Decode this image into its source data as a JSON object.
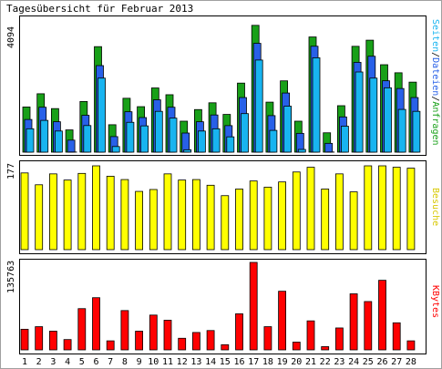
{
  "title": "Tagesübersicht für Februar 2013",
  "colors": {
    "anfragen": "#18a018",
    "dateien": "#2860e8",
    "seiten": "#18b4f0",
    "besuche": "#ffff00",
    "kbytes": "#ff0000",
    "weekend_day": "#009000",
    "weekday": "#000000"
  },
  "chart_data": [
    {
      "type": "bar",
      "name": "hits-files-pages",
      "ymax_label": "4094",
      "ylim": [
        0,
        4094
      ],
      "legend_right": [
        "Seiten",
        "Dateien",
        "Anfragen"
      ],
      "categories": [
        "1",
        "2",
        "3",
        "4",
        "5",
        "6",
        "7",
        "8",
        "9",
        "10",
        "11",
        "12",
        "13",
        "14",
        "15",
        "16",
        "17",
        "18",
        "19",
        "20",
        "21",
        "22",
        "23",
        "24",
        "25",
        "26",
        "27",
        "28"
      ],
      "series": [
        {
          "name": "Anfragen",
          "values": [
            1400,
            1810,
            1350,
            690,
            1570,
            3270,
            850,
            1670,
            1410,
            1990,
            1780,
            960,
            1320,
            1530,
            1170,
            2140,
            3930,
            1550,
            2210,
            960,
            3570,
            600,
            1440,
            3280,
            3470,
            2710,
            2460,
            2170
          ]
        },
        {
          "name": "Dateien",
          "values": [
            1210,
            1590,
            1140,
            570,
            1340,
            2880,
            680,
            1450,
            1270,
            1820,
            1590,
            790,
            1140,
            1350,
            1020,
            1890,
            3570,
            1330,
            2030,
            780,
            3480,
            470,
            1290,
            2980,
            3170,
            2410,
            2170,
            1890
          ]
        },
        {
          "name": "Seiten",
          "values": [
            1120,
            1380,
            1050,
            400,
            1220,
            2690,
            570,
            1320,
            1210,
            1660,
            1450,
            470,
            1050,
            1120,
            870,
            1590,
            3250,
            1070,
            1820,
            480,
            3320,
            400,
            1200,
            2880,
            2690,
            2390,
            1720,
            1660
          ]
        }
      ]
    },
    {
      "type": "bar",
      "name": "besuche",
      "ymax_label": "177",
      "ylim": [
        0,
        177
      ],
      "legend_right": [
        "Besuche"
      ],
      "categories": [
        "1",
        "2",
        "3",
        "4",
        "5",
        "6",
        "7",
        "8",
        "9",
        "10",
        "11",
        "12",
        "13",
        "14",
        "15",
        "16",
        "17",
        "18",
        "19",
        "20",
        "21",
        "22",
        "23",
        "24",
        "25",
        "26",
        "27",
        "28"
      ],
      "series": [
        {
          "name": "Besuche",
          "values": [
            162,
            137,
            160,
            147,
            161,
            177,
            155,
            148,
            123,
            127,
            160,
            147,
            148,
            136,
            114,
            128,
            145,
            132,
            143,
            164,
            174,
            128,
            160,
            122,
            177,
            177,
            174,
            172
          ]
        }
      ]
    },
    {
      "type": "bar",
      "name": "kbytes",
      "ymax_label": "135763",
      "ylim": [
        0,
        135763
      ],
      "legend_right": [
        "KBytes"
      ],
      "categories": [
        "1",
        "2",
        "3",
        "4",
        "5",
        "6",
        "7",
        "8",
        "9",
        "10",
        "11",
        "12",
        "13",
        "14",
        "15",
        "16",
        "17",
        "18",
        "19",
        "20",
        "21",
        "22",
        "23",
        "24",
        "25",
        "26",
        "27",
        "28"
      ],
      "series": [
        {
          "name": "KBytes",
          "values": [
            32000,
            36000,
            29000,
            16000,
            64000,
            81000,
            14000,
            61000,
            29000,
            54000,
            46000,
            18000,
            27000,
            30000,
            8000,
            56000,
            135763,
            36000,
            91000,
            12000,
            45000,
            5000,
            34000,
            87000,
            75000,
            108000,
            42000,
            14000
          ]
        }
      ]
    }
  ],
  "weekend_days": [
    2,
    3,
    9,
    10,
    16,
    17,
    23,
    24
  ]
}
